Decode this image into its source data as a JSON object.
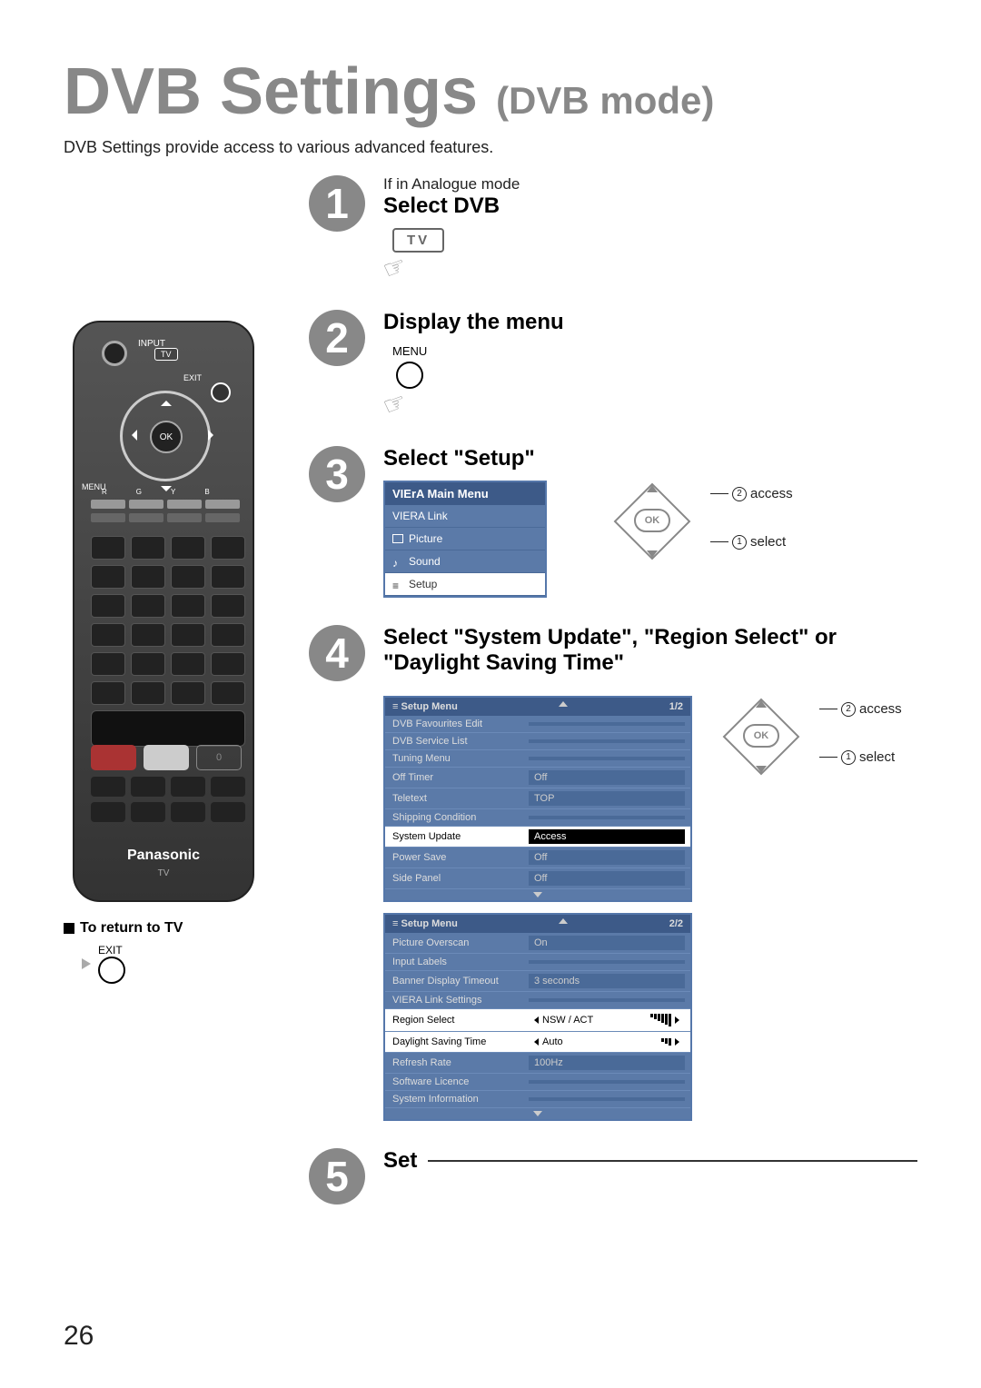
{
  "page": {
    "title_main": "DVB Settings",
    "title_sub": "(DVB mode)",
    "intro": "DVB Settings provide access to various advanced features.",
    "page_number": "26"
  },
  "remote": {
    "input_label": "INPUT",
    "tv_label": "TV",
    "exit_label": "EXIT",
    "ok_label": "OK",
    "menu_label": "MENU",
    "color_labels": [
      "R",
      "G",
      "Y",
      "B"
    ],
    "zero": "0",
    "brand": "Panasonic",
    "brand_sub": "TV"
  },
  "return": {
    "label": "To return to TV",
    "exit": "EXIT"
  },
  "steps": {
    "s1": {
      "num": "1",
      "pre": "If in Analogue mode",
      "title": "Select DVB",
      "tv_btn": "TV"
    },
    "s2": {
      "num": "2",
      "title": "Display the menu",
      "menu_label": "MENU"
    },
    "s3": {
      "num": "3",
      "title": "Select \"Setup\"",
      "menu_header": "VIErA  Main Menu",
      "items": [
        "VIERA Link",
        "Picture",
        "Sound",
        "Setup"
      ],
      "nav_access": "access",
      "nav_select": "select",
      "nav_ok": "OK",
      "n1": "1",
      "n2": "2"
    },
    "s4": {
      "num": "4",
      "title": "Select \"System Update\", \"Region Select\" or \"Daylight Saving Time\"",
      "menu1": {
        "header": "Setup Menu",
        "page": "1/2",
        "rows": [
          {
            "lbl": "DVB Favourites Edit",
            "val": ""
          },
          {
            "lbl": "DVB Service List",
            "val": ""
          },
          {
            "lbl": "Tuning Menu",
            "val": ""
          },
          {
            "lbl": "Off Timer",
            "val": "Off"
          },
          {
            "lbl": "Teletext",
            "val": "TOP"
          },
          {
            "lbl": "Shipping Condition",
            "val": ""
          },
          {
            "lbl": "System Update",
            "val": "Access",
            "sel": true
          },
          {
            "lbl": "Power Save",
            "val": "Off"
          },
          {
            "lbl": "Side Panel",
            "val": "Off"
          }
        ]
      },
      "menu2": {
        "header": "Setup Menu",
        "page": "2/2",
        "rows": [
          {
            "lbl": "Picture Overscan",
            "val": "On"
          },
          {
            "lbl": "Input Labels",
            "val": ""
          },
          {
            "lbl": "Banner Display Timeout",
            "val": "3 seconds"
          },
          {
            "lbl": "VIERA Link Settings",
            "val": ""
          },
          {
            "lbl": "Region Select",
            "val": "NSW / ACT",
            "sel2": true,
            "bars": 6
          },
          {
            "lbl": "Daylight Saving Time",
            "val": "Auto",
            "sel2": true,
            "bars": 3
          },
          {
            "lbl": "Refresh Rate",
            "val": "100Hz"
          },
          {
            "lbl": "Software Licence",
            "val": ""
          },
          {
            "lbl": "System Information",
            "val": ""
          }
        ]
      },
      "nav_access": "access",
      "nav_select": "select",
      "nav_ok": "OK",
      "n1": "1",
      "n2": "2"
    },
    "s5": {
      "num": "5",
      "title": "Set"
    }
  },
  "colors": {
    "step_circle": "#888888",
    "menu_bg": "#5b7aa8",
    "menu_header": "#3d5a88",
    "title_gray": "#888888"
  }
}
